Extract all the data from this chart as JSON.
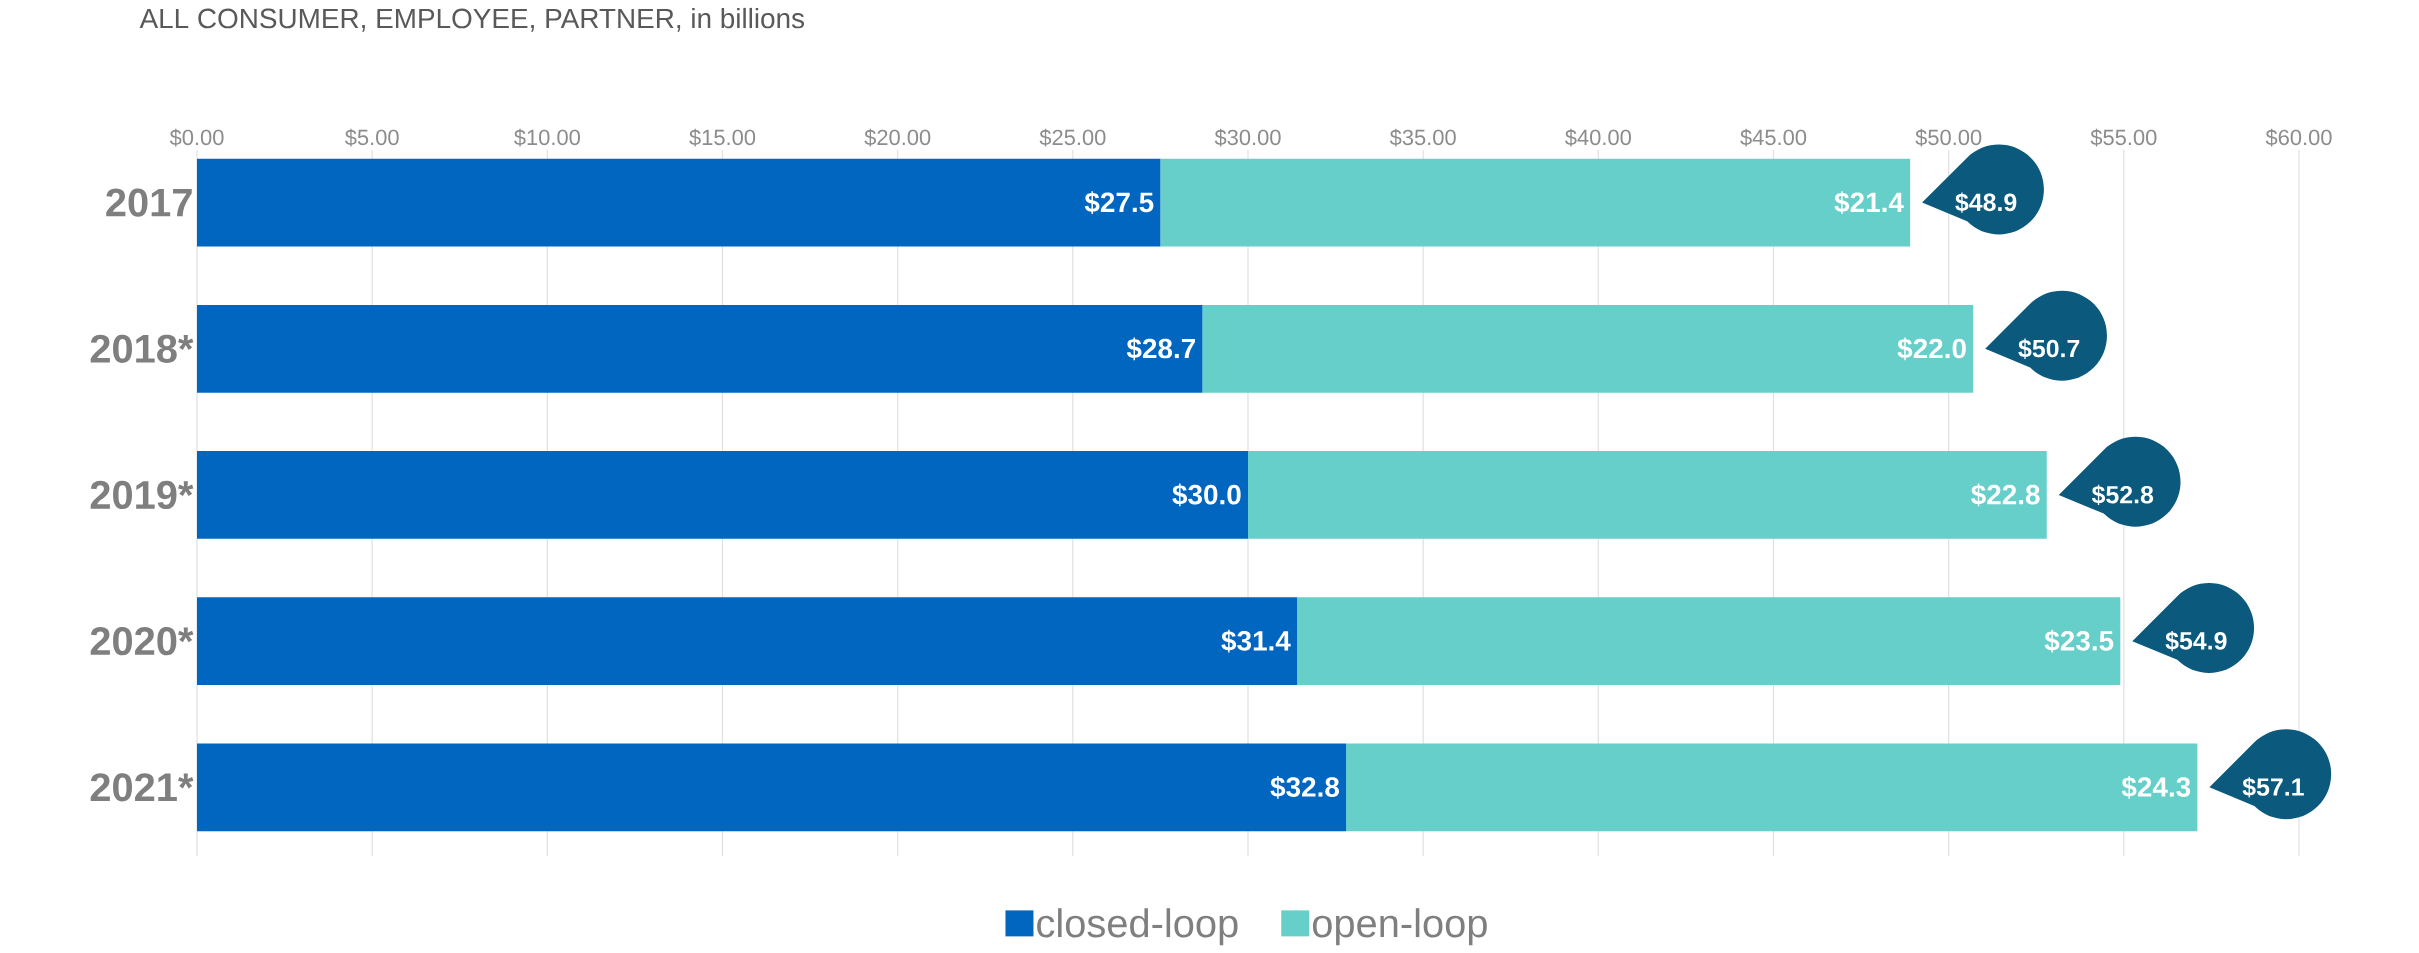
{
  "chart_data": {
    "type": "bar",
    "orientation": "horizontal",
    "stacked": true,
    "title": "ALL CONSUMER, EMPLOYEE, PARTNER, in billions",
    "categories": [
      "2017",
      "2018*",
      "2019*",
      "2020*",
      "2021*"
    ],
    "series": [
      {
        "name": "closed-loop",
        "color": "#0066c0",
        "values": [
          27.5,
          28.7,
          30.0,
          31.4,
          32.8
        ],
        "value_labels": [
          "$27.5",
          "$28.7",
          "$30.0",
          "$31.4",
          "$32.8"
        ]
      },
      {
        "name": "open-loop",
        "color": "#66cfc9",
        "values": [
          21.4,
          22.0,
          22.8,
          23.5,
          24.3
        ],
        "value_labels": [
          "$21.4",
          "$22.0",
          "$22.8",
          "$23.5",
          "$24.3"
        ]
      }
    ],
    "totals": [
      "$48.9",
      "$50.7",
      "$52.8",
      "$54.9",
      "$57.1"
    ],
    "xlim": [
      0,
      60
    ],
    "xticks": [
      {
        "value": 0,
        "label": "$0.00"
      },
      {
        "value": 5,
        "label": "$5.00"
      },
      {
        "value": 10,
        "label": "$10.00"
      },
      {
        "value": 15,
        "label": "$15.00"
      },
      {
        "value": 20,
        "label": "$20.00"
      },
      {
        "value": 25,
        "label": "$25.00"
      },
      {
        "value": 30,
        "label": "$30.00"
      },
      {
        "value": 35,
        "label": "$35.00"
      },
      {
        "value": 40,
        "label": "$40.00"
      },
      {
        "value": 45,
        "label": "$45.00"
      },
      {
        "value": 50,
        "label": "$50.00"
      },
      {
        "value": 55,
        "label": "$55.00"
      },
      {
        "value": 60,
        "label": "$60.00"
      }
    ],
    "grid": "x",
    "legend": "bottom"
  }
}
